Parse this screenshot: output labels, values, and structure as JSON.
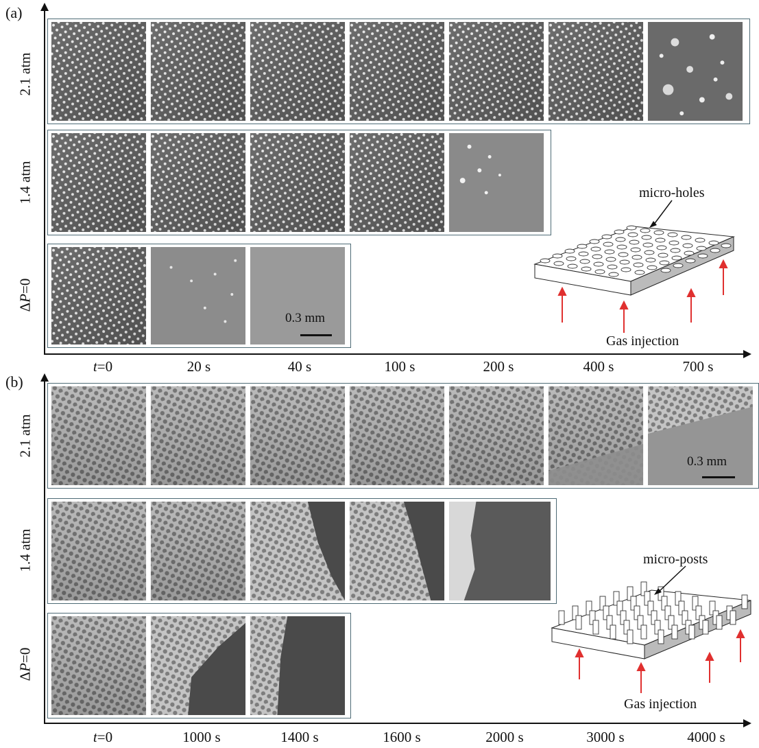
{
  "panels": [
    {
      "label": "(a)",
      "rows": [
        {
          "prefix": "",
          "pvar": "",
          "text": "2.1 atm"
        },
        {
          "prefix": "",
          "pvar": "",
          "text": "1.4 atm"
        },
        {
          "prefix": "Δ",
          "pvar": "P",
          "text": "=0"
        }
      ],
      "time_labels": [
        {
          "var": "t",
          "text": "=0"
        },
        {
          "var": "",
          "text": "20 s"
        },
        {
          "var": "",
          "text": "40 s"
        },
        {
          "var": "",
          "text": "100 s"
        },
        {
          "var": "",
          "text": "200 s"
        },
        {
          "var": "",
          "text": "400 s"
        },
        {
          "var": "",
          "text": "700 s"
        }
      ],
      "scale_bar": "0.3 mm",
      "inset": {
        "structure": "micro-holes",
        "injection": "Gas injection"
      }
    },
    {
      "label": "(b)",
      "rows": [
        {
          "prefix": "",
          "pvar": "",
          "text": "2.1 atm"
        },
        {
          "prefix": "",
          "pvar": "",
          "text": "1.4 atm"
        },
        {
          "prefix": "Δ",
          "pvar": "P",
          "text": "=0"
        }
      ],
      "time_labels": [
        {
          "var": "t",
          "text": "=0"
        },
        {
          "var": "",
          "text": "1000 s"
        },
        {
          "var": "",
          "text": "1400 s"
        },
        {
          "var": "",
          "text": "1600 s"
        },
        {
          "var": "",
          "text": "2000 s"
        },
        {
          "var": "",
          "text": "3000 s"
        },
        {
          "var": "",
          "text": "4000 s"
        }
      ],
      "scale_bar": "0.3 mm",
      "inset": {
        "structure": "micro-posts",
        "injection": "Gas injection"
      }
    }
  ],
  "colors": {
    "frame_border": "#4d6a75",
    "arrow": "#e0302f",
    "axis": "#111111"
  }
}
